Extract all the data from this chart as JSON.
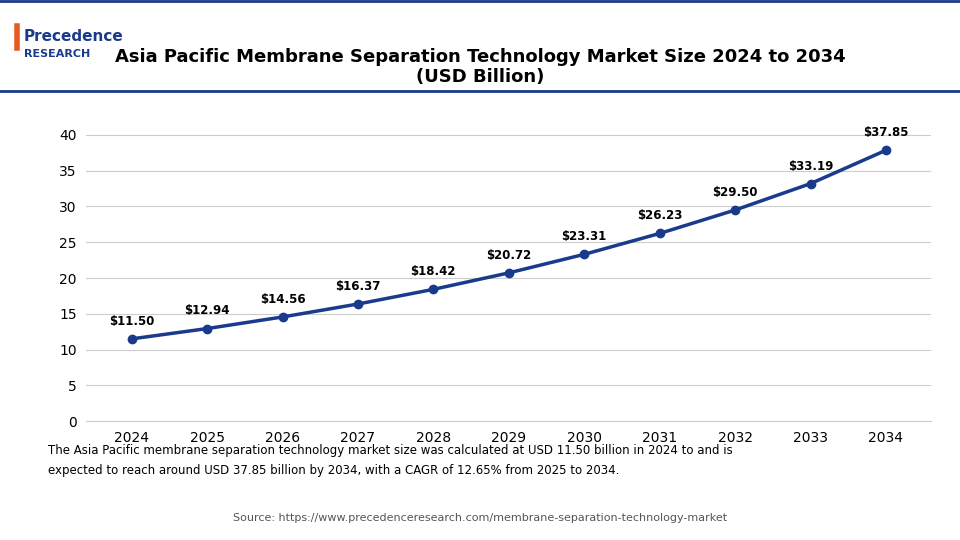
{
  "title_line1": "Asia Pacific Membrane Separation Technology Market Size 2024 to 2034",
  "title_line2": "(USD Billion)",
  "years": [
    2024,
    2025,
    2026,
    2027,
    2028,
    2029,
    2030,
    2031,
    2032,
    2033,
    2034
  ],
  "values": [
    11.5,
    12.94,
    14.56,
    16.37,
    18.42,
    20.72,
    23.31,
    26.23,
    29.5,
    33.19,
    37.85
  ],
  "labels": [
    "$11.50",
    "$12.94",
    "$14.56",
    "$16.37",
    "$18.42",
    "$20.72",
    "$23.31",
    "$26.23",
    "$29.50",
    "$33.19",
    "$37.85"
  ],
  "line_color": "#1a3a8c",
  "marker_color": "#1a3a8c",
  "yticks": [
    0,
    5,
    10,
    15,
    20,
    25,
    30,
    35,
    40
  ],
  "ylim": [
    0,
    43
  ],
  "grid_color": "#cccccc",
  "bg_color": "#ffffff",
  "plot_bg_color": "#ffffff",
  "footer_bg_color": "#dce6f1",
  "footer_text": "The Asia Pacific membrane separation technology market size was calculated at USD 11.50 billion in 2024 to and is\nexpected to reach around USD 37.85 billion by 2034, with a CAGR of 12.65% from 2025 to 2034.",
  "source_text": "Source: https://www.precedenceresearch.com/membrane-separation-technology-market",
  "header_line_color": "#1a3a8c",
  "title_color": "#000000",
  "label_color": "#000000",
  "tick_color": "#000000",
  "logo_color": "#1a3a8c",
  "logo_accent_color": "#e85b20"
}
